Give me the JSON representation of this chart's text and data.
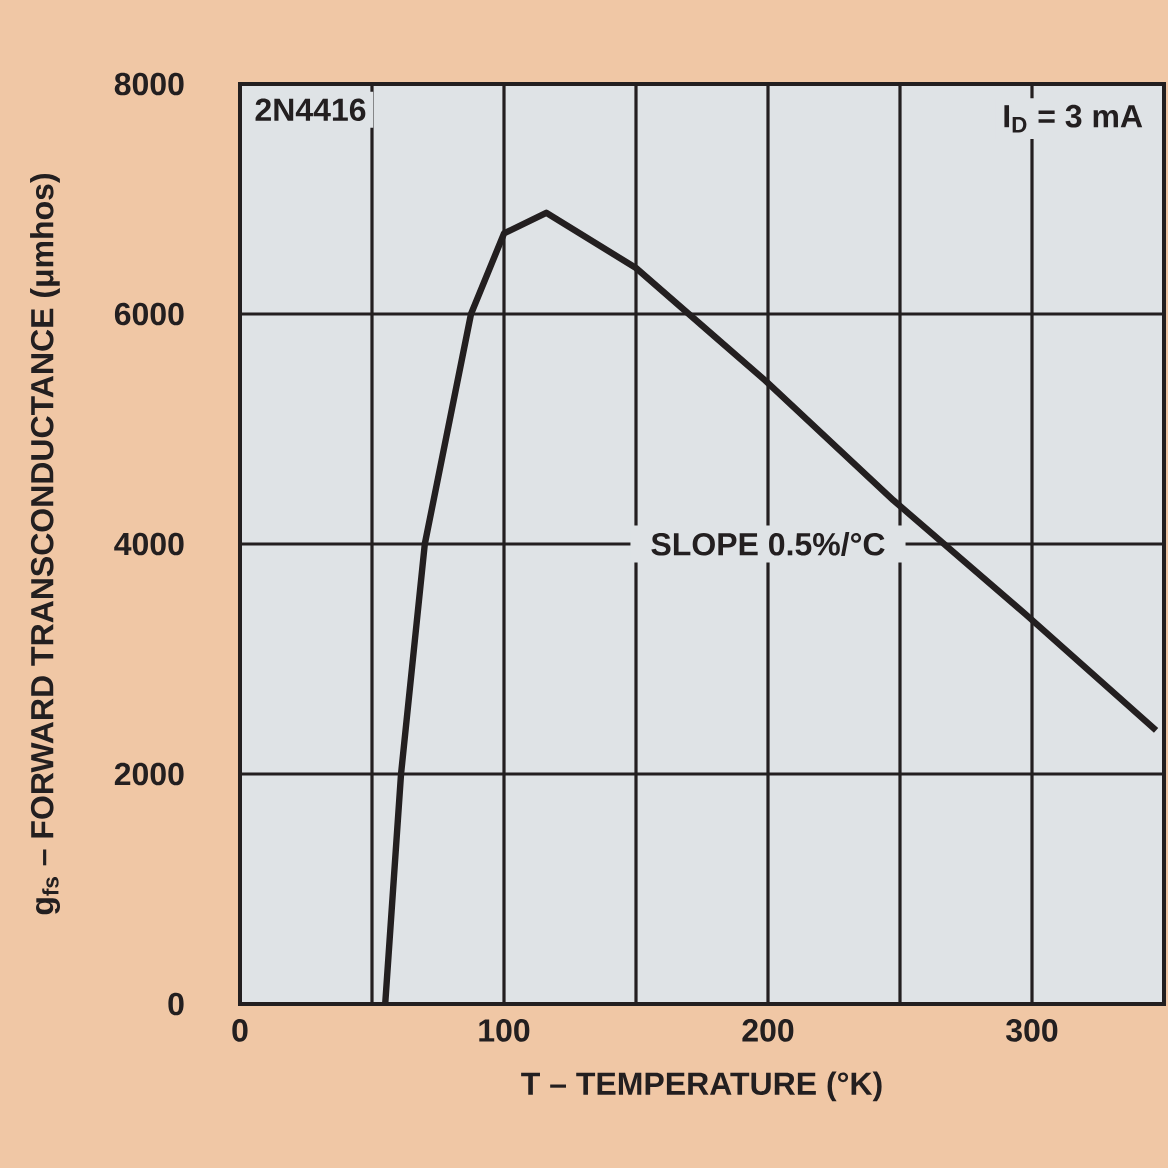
{
  "chart_data": {
    "type": "line",
    "xlabel": "T – TEMPERATURE (°K)",
    "ylabel": "g$_{fs}$ – FORWARD TRANSCONDUCTANCE (μmhos)",
    "annotations": [
      "2N4416",
      "I$_{D}$ = 3 mA",
      "SLOPE 0.5%/°C"
    ],
    "x": [
      55,
      61,
      70,
      87.5,
      100,
      116,
      150,
      180,
      199,
      247.5,
      297.5,
      347
    ],
    "series": [
      {
        "color": "#231f20",
        "values": [
          0,
          2000,
          4000,
          6000,
          6700,
          6880,
          6400,
          5800,
          5420,
          4380,
          3390,
          2380
        ]
      }
    ],
    "xlim": [
      0,
      350
    ],
    "ylim": [
      0,
      8000
    ],
    "xticks": [
      0,
      {
        "value": 50,
        "label": null
      },
      100,
      {
        "value": 150,
        "label": null
      },
      200,
      {
        "value": 250,
        "label": null
      },
      300
    ],
    "yticks": [
      0,
      2000,
      4000,
      6000,
      8000
    ],
    "grid": true,
    "marker": "none",
    "line_style": "solid"
  }
}
